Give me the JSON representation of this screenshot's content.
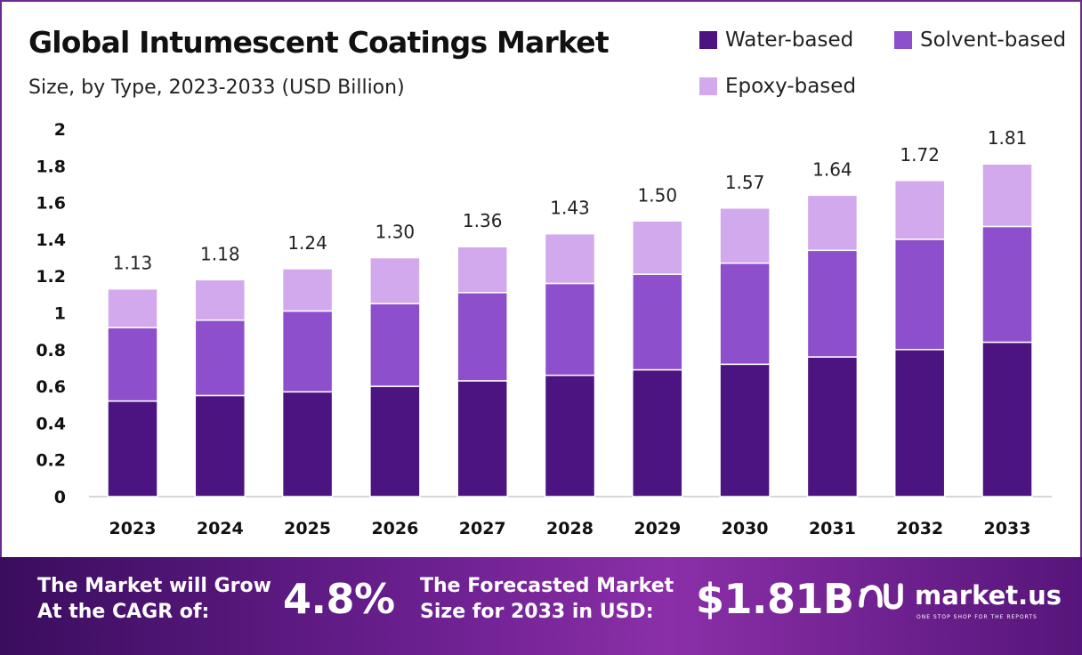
{
  "chart_data": {
    "type": "bar",
    "stacked": true,
    "title": "Global Intumescent Coatings Market",
    "subtitle": "Size, by Type, 2023-2033 (USD Billion)",
    "categories": [
      "2023",
      "2024",
      "2025",
      "2026",
      "2027",
      "2028",
      "2029",
      "2030",
      "2031",
      "2032",
      "2033"
    ],
    "series": [
      {
        "name": "Water-based",
        "color": "#4b1480",
        "values": [
          0.52,
          0.55,
          0.57,
          0.6,
          0.63,
          0.66,
          0.69,
          0.72,
          0.76,
          0.8,
          0.84
        ]
      },
      {
        "name": "Solvent-based",
        "color": "#8e4fcc",
        "values": [
          0.4,
          0.41,
          0.44,
          0.45,
          0.48,
          0.5,
          0.52,
          0.55,
          0.58,
          0.6,
          0.63
        ]
      },
      {
        "name": "Epoxy-based",
        "color": "#d1a9ec",
        "values": [
          0.21,
          0.22,
          0.23,
          0.25,
          0.25,
          0.27,
          0.29,
          0.3,
          0.3,
          0.32,
          0.34
        ]
      }
    ],
    "totals": [
      "1.13",
      "1.18",
      "1.24",
      "1.30",
      "1.36",
      "1.43",
      "1.50",
      "1.57",
      "1.64",
      "1.72",
      "1.81"
    ],
    "ylim": [
      0,
      2
    ],
    "yticks": [
      "0",
      "0.2",
      "0.4",
      "0.6",
      "0.8",
      "1",
      "1.2",
      "1.4",
      "1.6",
      "1.8",
      "2"
    ],
    "grid": false,
    "legend_position": "top-right"
  },
  "footer": {
    "cagr_label_line1": "The Market will Grow",
    "cagr_label_line2": "At the CAGR of:",
    "cagr_value": "4.8%",
    "forecast_label_line1": "The Forecasted Market",
    "forecast_label_line2": "Size for 2033 in USD:",
    "forecast_value": "$1.81B",
    "brand_name": "market.us",
    "brand_tagline": "ONE STOP SHOP FOR THE REPORTS",
    "brand_icon": "market-us-logo-icon"
  }
}
